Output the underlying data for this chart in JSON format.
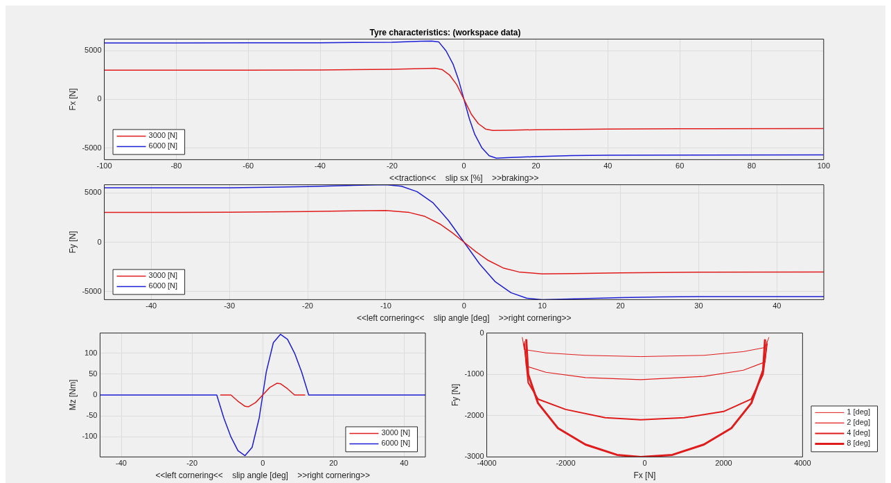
{
  "chart_data": [
    {
      "type": "line",
      "title": "Tyre characteristics: (workspace data)",
      "xlabel": "<<traction<<    slip sx [%]    >>braking>>",
      "ylabel": "Fx [N]",
      "xlim": [
        -100,
        100
      ],
      "xticks": [
        -100,
        -80,
        -60,
        -40,
        -20,
        0,
        20,
        40,
        60,
        80,
        100
      ],
      "ylim": [
        -6200,
        6200
      ],
      "yticks": [
        -5000,
        0,
        5000
      ],
      "grid": true,
      "legend": "bottom left",
      "series": [
        {
          "name": "3000 [N]",
          "color": "#e01b1b",
          "x": [
            -100,
            -60,
            -40,
            -20,
            -12,
            -8,
            -6,
            -4,
            -2,
            0,
            2,
            4,
            6,
            8,
            12,
            20,
            40,
            60,
            100
          ],
          "values": [
            3000,
            3010,
            3020,
            3100,
            3170,
            3200,
            3050,
            2500,
            1500,
            0,
            -1500,
            -2500,
            -3050,
            -3200,
            -3170,
            -3120,
            -3050,
            -3020,
            -3000
          ]
        },
        {
          "name": "6000 [N]",
          "color": "#1c1cd6",
          "x": [
            -100,
            -60,
            -40,
            -20,
            -12,
            -9,
            -7,
            -5,
            -3,
            -1.5,
            0,
            1.5,
            3,
            5,
            7,
            9,
            12,
            20,
            30,
            40,
            100
          ],
          "values": [
            5800,
            5810,
            5820,
            5880,
            5980,
            6000,
            5900,
            5000,
            3600,
            2000,
            0,
            -2000,
            -3600,
            -5000,
            -5800,
            -6050,
            -6000,
            -5880,
            -5780,
            -5750,
            -5700
          ]
        }
      ]
    },
    {
      "type": "line",
      "xlabel": "<<left cornering<<    slip angle [deg]    >>right cornering>>",
      "ylabel": "Fy [N]",
      "xlim": [
        -46,
        46
      ],
      "xticks": [
        -40,
        -30,
        -20,
        -10,
        0,
        10,
        20,
        30,
        40
      ],
      "ylim": [
        -5800,
        5800
      ],
      "yticks": [
        -5000,
        0,
        5000
      ],
      "grid": true,
      "legend": "bottom left",
      "series": [
        {
          "name": "3000 [N]",
          "color": "#e01b1b",
          "x": [
            -46,
            -30,
            -20,
            -14,
            -10,
            -7,
            -5,
            -3,
            -1.5,
            0,
            1.5,
            3,
            5,
            7,
            10,
            14,
            20,
            30,
            46
          ],
          "values": [
            3000,
            3020,
            3100,
            3170,
            3200,
            3000,
            2600,
            1800,
            950,
            0,
            -950,
            -1800,
            -2600,
            -3000,
            -3200,
            -3170,
            -3100,
            -3020,
            -3000
          ]
        },
        {
          "name": "6000 [N]",
          "color": "#1c1cd6",
          "x": [
            -46,
            -30,
            -25,
            -20,
            -15,
            -10,
            -8,
            -6,
            -4,
            -2,
            0,
            2,
            4,
            6,
            8,
            10,
            15,
            20,
            25,
            30,
            46
          ],
          "values": [
            5500,
            5500,
            5550,
            5620,
            5720,
            5800,
            5650,
            5100,
            4000,
            2200,
            0,
            -2200,
            -4000,
            -5100,
            -5650,
            -5800,
            -5700,
            -5600,
            -5520,
            -5500,
            -5500
          ]
        }
      ]
    },
    {
      "type": "line",
      "xlabel": "<<left cornering<<    slip angle [deg]    >>right cornering>>",
      "ylabel": "Mz [Nm]",
      "xlim": [
        -46,
        46
      ],
      "xticks": [
        -40,
        -20,
        0,
        20,
        40
      ],
      "ylim": [
        -148,
        148
      ],
      "yticks": [
        -100,
        -50,
        0,
        50,
        100
      ],
      "grid": true,
      "legend": "bottom right",
      "series": [
        {
          "name": "3000 [N]",
          "color": "#e01b1b",
          "x": [
            -12,
            -9,
            -7,
            -5,
            -4,
            -2,
            0,
            2,
            4,
            5,
            7,
            9,
            12
          ],
          "values": [
            0,
            0,
            -15,
            -27,
            -28,
            -18,
            0,
            18,
            28,
            27,
            15,
            0,
            0
          ]
        },
        {
          "name": "6000 [N]",
          "color": "#1c1cd6",
          "x": [
            -46,
            -13,
            -11,
            -9,
            -7,
            -5,
            -3,
            -1,
            0,
            1,
            3,
            5,
            7,
            9,
            11,
            13,
            46
          ],
          "values": [
            0,
            0,
            -55,
            -100,
            -133,
            -145,
            -125,
            -55,
            0,
            55,
            125,
            145,
            133,
            100,
            55,
            0,
            0
          ]
        }
      ]
    },
    {
      "type": "line",
      "xlabel": "Fx [N]",
      "ylabel": "Fy [N]",
      "xlim": [
        -4000,
        4000
      ],
      "xticks": [
        -4000,
        -2000,
        0,
        2000,
        4000
      ],
      "ylim": [
        -3000,
        0
      ],
      "yticks": [
        -3000,
        -2000,
        -1000,
        0
      ],
      "grid": true,
      "legend": "right",
      "series": [
        {
          "name": "1 [deg]",
          "color": "#e01b1b",
          "x": [
            -3100,
            -3050,
            -2500,
            -1500,
            -100,
            1500,
            2500,
            3050,
            3150
          ],
          "values": [
            -100,
            -400,
            -480,
            -540,
            -570,
            -540,
            -450,
            -350,
            -100
          ]
        },
        {
          "name": "2 [deg]",
          "color": "#e01b1b",
          "x": [
            -3050,
            -3000,
            -2500,
            -1500,
            -100,
            1500,
            2500,
            3050,
            3100
          ],
          "values": [
            -200,
            -800,
            -950,
            -1080,
            -1130,
            -1050,
            -900,
            -700,
            -200
          ]
        },
        {
          "name": "4 [deg]",
          "color": "#e01b1b",
          "x": [
            -3050,
            -2950,
            -2700,
            -2000,
            -1000,
            -100,
            1000,
            2000,
            2700,
            3000,
            3100
          ],
          "values": [
            -250,
            -1200,
            -1600,
            -1850,
            -2050,
            -2100,
            -2050,
            -1900,
            -1600,
            -1000,
            -250
          ]
        },
        {
          "name": "8 [deg]",
          "color": "#e01b1b",
          "x": [
            -3000,
            -2950,
            -2700,
            -2200,
            -1500,
            -700,
            -100,
            700,
            1500,
            2200,
            2700,
            3000,
            3050
          ],
          "values": [
            -150,
            -1000,
            -1700,
            -2300,
            -2700,
            -2950,
            -3000,
            -2950,
            -2700,
            -2300,
            -1700,
            -900,
            -150
          ]
        }
      ]
    }
  ]
}
